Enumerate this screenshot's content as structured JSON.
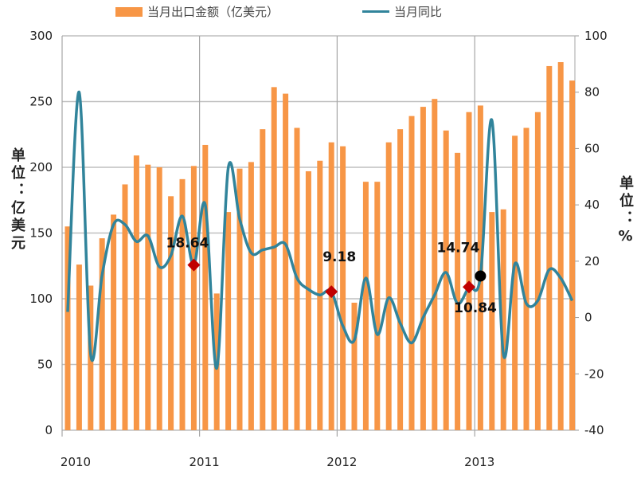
{
  "chart_data": {
    "type": "bar+line",
    "legend": {
      "bar": "当月出口金额（亿美元）",
      "line": "当月同比",
      "placement": "top"
    },
    "left_axis": {
      "label": "单位：亿美元",
      "ticks": [
        "0",
        "50",
        "100",
        "150",
        "200",
        "250",
        "300"
      ],
      "range": [
        0,
        300
      ]
    },
    "right_axis": {
      "label": "单位：%",
      "ticks": [
        "-40",
        "-20",
        "0",
        "20",
        "40",
        "60",
        "80",
        "100"
      ],
      "range": [
        -40,
        100
      ]
    },
    "x_ticks": [
      "2010",
      "2011",
      "2012",
      "2013"
    ],
    "series": [
      {
        "name": "当月出口金额（亿美元）",
        "type": "bar",
        "color": "#f79646",
        "values": [
          155,
          126,
          110,
          146,
          164,
          187,
          209,
          202,
          200,
          178,
          191,
          201,
          217,
          104,
          166,
          199,
          204,
          229,
          261,
          256,
          230,
          197,
          205,
          219,
          216,
          97,
          189,
          189,
          219,
          229,
          239,
          246,
          252,
          228,
          211,
          242,
          247,
          166,
          168,
          224,
          230,
          242,
          277,
          280,
          266
        ]
      },
      {
        "name": "当月同比",
        "type": "line",
        "color": "#31849b",
        "values": [
          2,
          80,
          -13,
          15,
          33,
          33,
          27,
          29,
          18,
          22,
          36,
          18.64,
          40,
          -18,
          53,
          35,
          23,
          24,
          25,
          26,
          14,
          10,
          8,
          9.18,
          -3,
          -8,
          14,
          -6,
          7,
          -2,
          -9,
          0,
          8,
          16,
          5,
          10.84,
          14.74,
          70,
          -13,
          19,
          5,
          6,
          17,
          14,
          6
        ]
      }
    ],
    "annotations": [
      {
        "index": 11,
        "text": "18.64",
        "marker": "diamond",
        "color": "#c00000"
      },
      {
        "index": 23,
        "text": "9.18",
        "marker": "diamond",
        "color": "#c00000"
      },
      {
        "index": 35,
        "text": "10.84",
        "marker": "diamond",
        "color": "#c00000"
      },
      {
        "index": 36,
        "text": "14.74",
        "marker": "circle",
        "color": "#000000"
      }
    ]
  }
}
